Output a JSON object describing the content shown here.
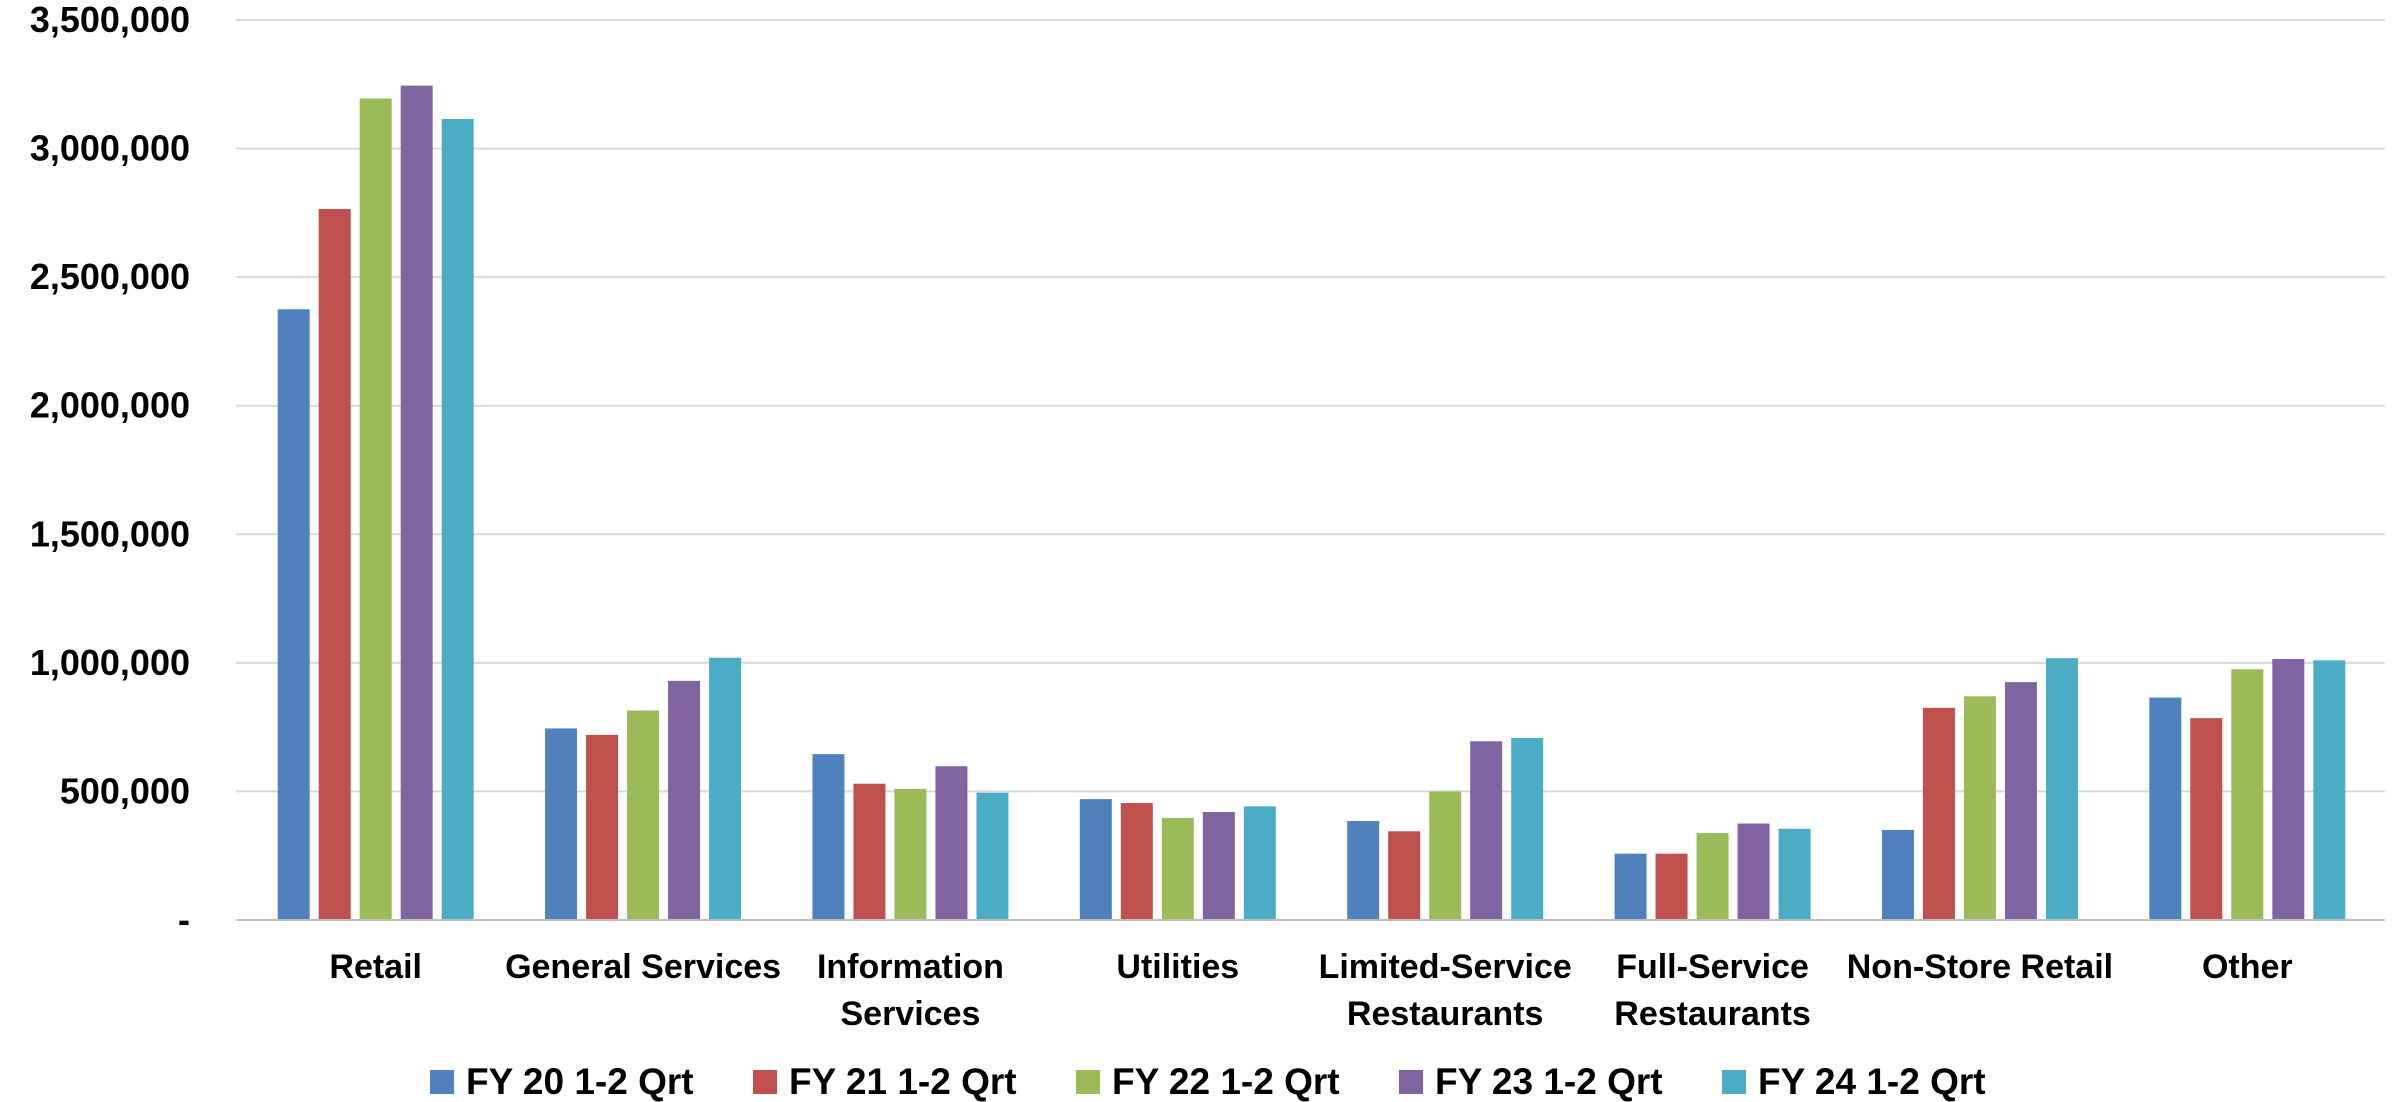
{
  "chart_data": {
    "type": "bar",
    "title": "",
    "xlabel": "",
    "ylabel": "",
    "ylim": [
      0,
      3500000
    ],
    "yticks": [
      0,
      500000,
      1000000,
      1500000,
      2000000,
      2500000,
      3000000,
      3500000
    ],
    "ytick_labels": [
      "-",
      "500,000",
      "1,000,000",
      "1,500,000",
      "2,000,000",
      "2,500,000",
      "3,000,000",
      "3,500,000"
    ],
    "grid": true,
    "legend_position": "bottom",
    "categories": [
      [
        "Retail"
      ],
      [
        "General Services"
      ],
      [
        "Information",
        "Services"
      ],
      [
        "Utilities"
      ],
      [
        "Limited-Service",
        "Restaurants"
      ],
      [
        "Full-Service",
        "Restaurants"
      ],
      [
        "Non-Store Retail"
      ],
      [
        "Other"
      ]
    ],
    "series": [
      {
        "name": "FY 20 1-2 Qrt",
        "color": "#4f81bd",
        "values": [
          2375000,
          745000,
          645000,
          470000,
          385000,
          258000,
          350000,
          865000
        ]
      },
      {
        "name": "FY 21 1-2 Qrt",
        "color": "#c0504d",
        "values": [
          2765000,
          720000,
          530000,
          455000,
          345000,
          258000,
          825000,
          785000
        ]
      },
      {
        "name": "FY 22 1-2 Qrt",
        "color": "#9bbb59",
        "values": [
          3195000,
          815000,
          510000,
          397000,
          500000,
          338000,
          870000,
          975000
        ]
      },
      {
        "name": "FY 23 1-2 Qrt",
        "color": "#8064a2",
        "values": [
          3245000,
          930000,
          598000,
          420000,
          695000,
          375000,
          925000,
          1015000
        ]
      },
      {
        "name": "FY 24 1-2 Qrt",
        "color": "#4bacc6",
        "values": [
          3115000,
          1020000,
          495000,
          442000,
          708000,
          355000,
          1018000,
          1010000
        ]
      }
    ]
  }
}
